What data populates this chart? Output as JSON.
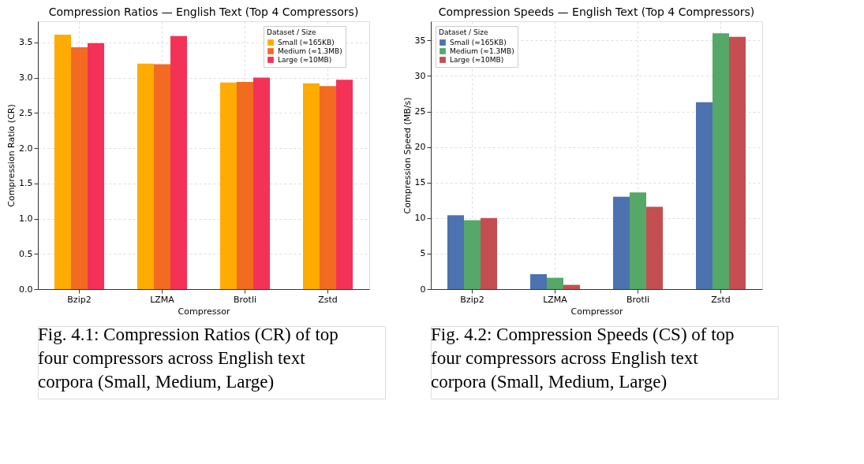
{
  "chart_data": [
    {
      "type": "bar",
      "title": "Compression Ratios — English Text (Top 4 Compressors)",
      "xlabel": "Compressor",
      "ylabel": "Compression Ratio (CR)",
      "legend_title": "Dataset / Size",
      "legend": "top right",
      "grid": true,
      "categories": [
        "Bzip2",
        "LZMA",
        "Brotli",
        "Zstd"
      ],
      "series": [
        {
          "name": "Small (≈165KB)",
          "color": "#ffab00",
          "values": [
            3.61,
            3.2,
            2.93,
            2.92
          ]
        },
        {
          "name": "Medium (≈1.3MB)",
          "color": "#f26b21",
          "values": [
            3.43,
            3.19,
            2.94,
            2.88
          ]
        },
        {
          "name": "Large (≈10MB)",
          "color": "#f43157",
          "values": [
            3.49,
            3.59,
            3.0,
            2.97
          ]
        }
      ],
      "ylim": [
        0,
        3.8
      ],
      "yticks": [
        {
          "value": 0,
          "label": "0.0"
        },
        0.5,
        {
          "value": 1,
          "label": "1.0"
        },
        1.5,
        {
          "value": 2,
          "label": "2.0"
        },
        2.5,
        {
          "value": 3,
          "label": "3.0"
        },
        3.5
      ],
      "annotations": [
        "Fig. 4.1: Compression Ratios (CR) of top four compressors across English text corpora (Small, Medium, Large)"
      ]
    },
    {
      "type": "bar",
      "title": "Compression Speeds — English Text (Top 4 Compressors)",
      "xlabel": "Compressor",
      "ylabel": "Compression Speed (MB/s)",
      "legend_title": "Dataset / Size",
      "legend": "top left",
      "grid": true,
      "categories": [
        "Bzip2",
        "LZMA",
        "Brotli",
        "Zstd"
      ],
      "series": [
        {
          "name": "Small (≈165KB)",
          "color": "#4c72b0",
          "values": [
            10.4,
            2.1,
            13.0,
            26.3
          ]
        },
        {
          "name": "Medium (≈1.3MB)",
          "color": "#55a868",
          "values": [
            9.7,
            1.6,
            13.6,
            36.0
          ]
        },
        {
          "name": "Large (≈10MB)",
          "color": "#c44e52",
          "values": [
            10.0,
            0.6,
            11.6,
            35.5
          ]
        }
      ],
      "ylim": [
        0,
        37.7
      ],
      "yticks": [
        0,
        5,
        10,
        15,
        20,
        25,
        30,
        35
      ],
      "annotations": [
        "Fig. 4.2: Compression Speeds (CS) of top four compressors across English text corpora (Small, Medium, Large)"
      ]
    }
  ]
}
